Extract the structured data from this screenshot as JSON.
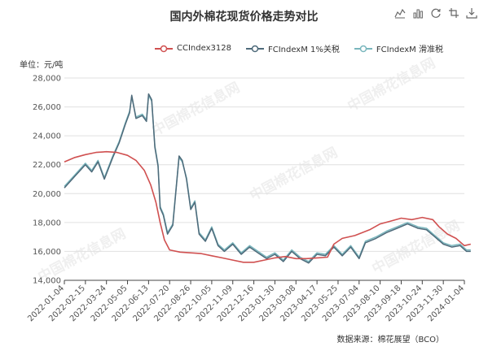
{
  "header": {
    "title": "国内外棉花现货价格走势对比"
  },
  "toolbox": {
    "items": [
      {
        "name": "line-chart-icon"
      },
      {
        "name": "bar-chart-icon"
      },
      {
        "name": "refresh-icon"
      },
      {
        "name": "zoom-icon"
      },
      {
        "name": "download-icon"
      }
    ]
  },
  "legend": {
    "items": [
      {
        "label": "CCIndex3128",
        "color": "#d05050"
      },
      {
        "label": "FCIndexM 1%关税",
        "color": "#4e6a7a"
      },
      {
        "label": "FCIndexM 滑准税",
        "color": "#79b6bd"
      }
    ]
  },
  "unit_label": "单位：元/吨",
  "source_label": "数据来源：棉花展望（BCO）",
  "watermark_text": "中国棉花信息网",
  "chart_data": {
    "type": "line",
    "y_ticks": [
      "28,000",
      "26,000",
      "24,000",
      "22,000",
      "20,000",
      "18,000",
      "16,000",
      "14,000"
    ],
    "ylim": [
      14000,
      28000
    ],
    "x_ticks": [
      "2022-01-04",
      "2022-02-15",
      "2022-03-24",
      "2022-05-05",
      "2022-06-13",
      "2022-07-20",
      "2022-08-26",
      "2022-10-05",
      "2022-11-09",
      "2022-12-16",
      "2023-01-30",
      "2023-03-08",
      "2023-04-17",
      "2023-05-25",
      "2023-07-04",
      "2023-08-10",
      "2023-09-18",
      "2023-10-24",
      "2023-11-30",
      "2024-01-04"
    ],
    "series": [
      {
        "name": "CCIndex3128",
        "color": "#d05050",
        "points": [
          [
            0,
            22200
          ],
          [
            0.5,
            22500
          ],
          [
            1,
            22700
          ],
          [
            1.5,
            22850
          ],
          [
            2,
            22900
          ],
          [
            2.5,
            22850
          ],
          [
            3,
            22650
          ],
          [
            3.4,
            22300
          ],
          [
            3.8,
            21600
          ],
          [
            4.1,
            20600
          ],
          [
            4.35,
            19400
          ],
          [
            4.55,
            18000
          ],
          [
            4.75,
            16800
          ],
          [
            5,
            16100
          ],
          [
            5.5,
            15950
          ],
          [
            6,
            15900
          ],
          [
            6.5,
            15850
          ],
          [
            7,
            15700
          ],
          [
            7.5,
            15550
          ],
          [
            8,
            15400
          ],
          [
            8.5,
            15250
          ],
          [
            9,
            15250
          ],
          [
            9.5,
            15400
          ],
          [
            10,
            15550
          ],
          [
            10.5,
            15650
          ],
          [
            11,
            15500
          ],
          [
            11.5,
            15500
          ],
          [
            12,
            15550
          ],
          [
            12.5,
            15600
          ],
          [
            12.8,
            16500
          ],
          [
            13.2,
            16900
          ],
          [
            13.8,
            17100
          ],
          [
            14.5,
            17500
          ],
          [
            15,
            17900
          ],
          [
            15.5,
            18100
          ],
          [
            16,
            18300
          ],
          [
            16.5,
            18200
          ],
          [
            17,
            18350
          ],
          [
            17.5,
            18200
          ],
          [
            17.8,
            17700
          ],
          [
            18.2,
            17200
          ],
          [
            18.6,
            16900
          ],
          [
            19,
            16400
          ],
          [
            19.3,
            16500
          ]
        ]
      },
      {
        "name": "FCIndexM 1%关税",
        "color": "#4e6a7a",
        "points": [
          [
            0,
            20400
          ],
          [
            0.5,
            21200
          ],
          [
            1,
            22000
          ],
          [
            1.3,
            21500
          ],
          [
            1.6,
            22200
          ],
          [
            1.9,
            21000
          ],
          [
            2.3,
            22500
          ],
          [
            2.6,
            23500
          ],
          [
            2.9,
            24800
          ],
          [
            3.1,
            25600
          ],
          [
            3.2,
            26800
          ],
          [
            3.4,
            25200
          ],
          [
            3.7,
            25400
          ],
          [
            3.9,
            25000
          ],
          [
            4.0,
            26900
          ],
          [
            4.15,
            26500
          ],
          [
            4.3,
            23200
          ],
          [
            4.45,
            21900
          ],
          [
            4.55,
            19000
          ],
          [
            4.7,
            18500
          ],
          [
            4.9,
            17200
          ],
          [
            5.15,
            17800
          ],
          [
            5.3,
            20200
          ],
          [
            5.45,
            22600
          ],
          [
            5.6,
            22300
          ],
          [
            5.8,
            21000
          ],
          [
            6.0,
            18900
          ],
          [
            6.2,
            19400
          ],
          [
            6.4,
            17200
          ],
          [
            6.7,
            16700
          ],
          [
            7.0,
            17600
          ],
          [
            7.3,
            16400
          ],
          [
            7.6,
            16000
          ],
          [
            8.0,
            16500
          ],
          [
            8.4,
            15800
          ],
          [
            8.8,
            16300
          ],
          [
            9.2,
            15900
          ],
          [
            9.6,
            15500
          ],
          [
            10.0,
            15800
          ],
          [
            10.4,
            15300
          ],
          [
            10.8,
            16000
          ],
          [
            11.2,
            15500
          ],
          [
            11.6,
            15200
          ],
          [
            12.0,
            15800
          ],
          [
            12.4,
            15700
          ],
          [
            12.8,
            16300
          ],
          [
            13.2,
            15700
          ],
          [
            13.6,
            16300
          ],
          [
            14.0,
            15500
          ],
          [
            14.3,
            16600
          ],
          [
            14.8,
            16900
          ],
          [
            15.3,
            17300
          ],
          [
            15.8,
            17600
          ],
          [
            16.3,
            17900
          ],
          [
            16.8,
            17600
          ],
          [
            17.2,
            17500
          ],
          [
            17.6,
            17000
          ],
          [
            18.0,
            16500
          ],
          [
            18.4,
            16300
          ],
          [
            18.8,
            16400
          ],
          [
            19.1,
            16000
          ],
          [
            19.3,
            16000
          ]
        ]
      },
      {
        "name": "FCIndexM 滑准税",
        "color": "#79b6bd",
        "points": [
          [
            0,
            20500
          ],
          [
            0.5,
            21300
          ],
          [
            1,
            22100
          ],
          [
            1.3,
            21600
          ],
          [
            1.6,
            22300
          ],
          [
            1.9,
            21100
          ],
          [
            2.3,
            22600
          ],
          [
            2.6,
            23600
          ],
          [
            2.9,
            24900
          ],
          [
            3.1,
            25700
          ],
          [
            3.2,
            26700
          ],
          [
            3.4,
            25300
          ],
          [
            3.7,
            25500
          ],
          [
            3.9,
            25100
          ],
          [
            4.0,
            26800
          ],
          [
            4.15,
            26400
          ],
          [
            4.3,
            23300
          ],
          [
            4.45,
            22000
          ],
          [
            4.55,
            19100
          ],
          [
            4.7,
            18600
          ],
          [
            4.9,
            17300
          ],
          [
            5.15,
            17900
          ],
          [
            5.3,
            20300
          ],
          [
            5.45,
            22500
          ],
          [
            5.6,
            22200
          ],
          [
            5.8,
            21100
          ],
          [
            6.0,
            19000
          ],
          [
            6.2,
            19500
          ],
          [
            6.4,
            17300
          ],
          [
            6.7,
            16800
          ],
          [
            7.0,
            17700
          ],
          [
            7.3,
            16500
          ],
          [
            7.6,
            16100
          ],
          [
            8.0,
            16600
          ],
          [
            8.4,
            15900
          ],
          [
            8.8,
            16400
          ],
          [
            9.2,
            16000
          ],
          [
            9.6,
            15600
          ],
          [
            10.0,
            15900
          ],
          [
            10.4,
            15400
          ],
          [
            10.8,
            16100
          ],
          [
            11.2,
            15600
          ],
          [
            11.6,
            15300
          ],
          [
            12.0,
            15900
          ],
          [
            12.4,
            15800
          ],
          [
            12.8,
            16400
          ],
          [
            13.2,
            15800
          ],
          [
            13.6,
            16400
          ],
          [
            14.0,
            15600
          ],
          [
            14.3,
            16700
          ],
          [
            14.8,
            17000
          ],
          [
            15.3,
            17400
          ],
          [
            15.8,
            17700
          ],
          [
            16.3,
            18000
          ],
          [
            16.8,
            17700
          ],
          [
            17.2,
            17600
          ],
          [
            17.6,
            17100
          ],
          [
            18.0,
            16600
          ],
          [
            18.4,
            16400
          ],
          [
            18.8,
            16500
          ],
          [
            19.1,
            16100
          ],
          [
            19.3,
            16100
          ]
        ]
      }
    ]
  }
}
